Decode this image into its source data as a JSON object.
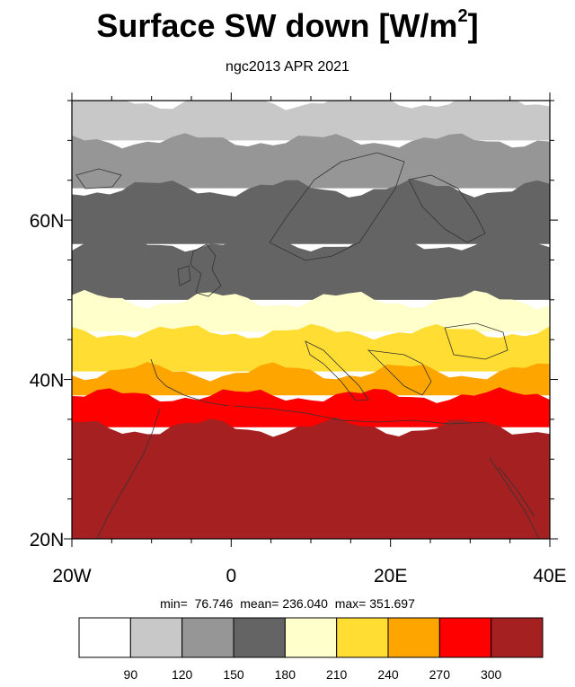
{
  "header": {
    "title": "Surface SW down [W/m",
    "title_sup": "2",
    "title_end": "]",
    "subtitle": "ngc2013 APR 2021"
  },
  "map": {
    "lon_labels": [
      "20W",
      "0",
      "20E",
      "40E"
    ],
    "lat_labels": [
      "60N",
      "40N",
      "20N"
    ],
    "lon_range": [
      -20,
      40
    ],
    "lat_range": [
      20,
      75
    ],
    "bands": [
      {
        "lat_from": 70,
        "lat_to": 75,
        "bin": 1
      },
      {
        "lat_from": 64,
        "lat_to": 70,
        "bin": 2
      },
      {
        "lat_from": 57,
        "lat_to": 64,
        "bin": 3
      },
      {
        "lat_from": 50,
        "lat_to": 57,
        "bin": 3
      },
      {
        "lat_from": 46,
        "lat_to": 50,
        "bin": 4
      },
      {
        "lat_from": 41,
        "lat_to": 46,
        "bin": 5
      },
      {
        "lat_from": 38,
        "lat_to": 41,
        "bin": 6
      },
      {
        "lat_from": 34,
        "lat_to": 38,
        "bin": 7
      },
      {
        "lat_from": 20,
        "lat_to": 34,
        "bin": 8
      }
    ]
  },
  "stats": {
    "min_label": "min=",
    "min_value": "76.746",
    "mean_label": "mean=",
    "mean_value": "236.040",
    "max_label": "max=",
    "max_value": "351.697"
  },
  "colorbar": {
    "colors": [
      "#ffffff",
      "#c8c8c8",
      "#969696",
      "#646464",
      "#ffffcc",
      "#ffdd33",
      "#ffa500",
      "#ff0000",
      "#a52020"
    ],
    "thresholds": [
      "90",
      "120",
      "150",
      "180",
      "210",
      "240",
      "270",
      "300"
    ]
  }
}
